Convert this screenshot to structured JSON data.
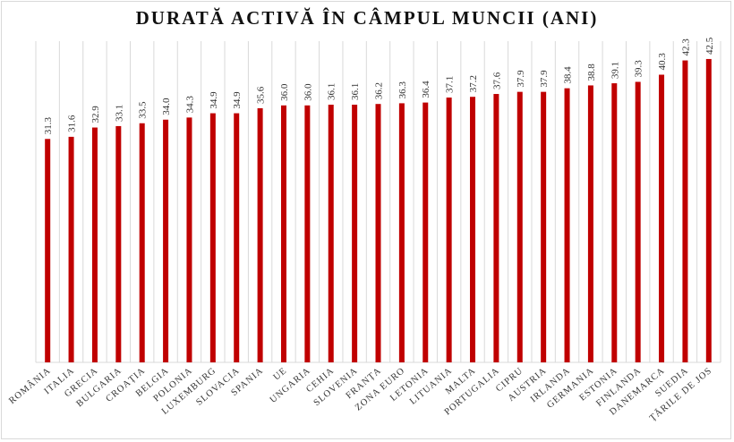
{
  "chart_data": {
    "type": "bar",
    "title": "DURATĂ ACTIVĂ ÎN CÂMPUL MUNCII (ANI)",
    "categories": [
      "ROMÂNIA",
      "ITALIA",
      "GRECIA",
      "BULGARIA",
      "CROAȚIA",
      "BELGIA",
      "POLONIA",
      "LUXEMBURG",
      "SLOVACIA",
      "SPANIA",
      "UE",
      "UNGARIA",
      "CEHIA",
      "SLOVENIA",
      "FRANȚA",
      "ZONA EURO",
      "LETONIA",
      "LITUANIA",
      "MALTA",
      "PORTUGALIA",
      "CIPRU",
      "AUSTRIA",
      "IRLANDA",
      "GERMANIA",
      "ESTONIA",
      "FINLANDA",
      "DANEMARCA",
      "SUEDIA",
      "ȚĂRILE DE JOS"
    ],
    "values": [
      31.3,
      31.6,
      32.9,
      33.1,
      33.5,
      34.0,
      34.3,
      34.9,
      34.9,
      35.6,
      36.0,
      36.0,
      36.1,
      36.1,
      36.2,
      36.3,
      36.4,
      37.1,
      37.2,
      37.6,
      37.9,
      37.9,
      38.4,
      38.8,
      39.1,
      39.3,
      40.3,
      42.3,
      42.5
    ],
    "xlabel": "",
    "ylabel": "",
    "ylim": [
      0,
      45
    ],
    "grid": "vertical",
    "legend": "none",
    "bar_color": "#c00000",
    "data_labels": true
  }
}
